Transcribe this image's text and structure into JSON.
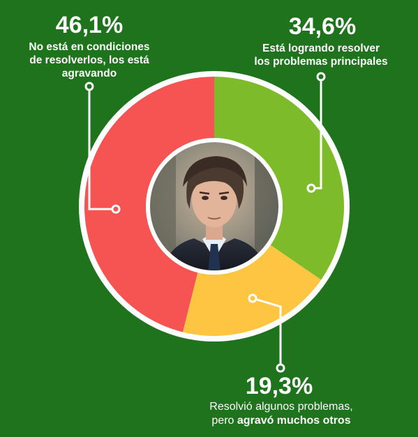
{
  "chart_data": {
    "type": "donut",
    "series": [
      {
        "value": 34.6,
        "value_label": "34,6%",
        "label": "Está lograndro resolver los problemas principales",
        "label_lines": [
          "Está logrando resolver",
          "los problemas principales"
        ],
        "color": "#7dbb2b"
      },
      {
        "value": 19.3,
        "value_label": "19,3%",
        "label": "Resolvió algunos problemas, pero agravó muchos otros",
        "label_lines": [
          "Resolvió algunos problemas,",
          "pero",
          "agravó muchos otros"
        ],
        "color": "#fdc542"
      },
      {
        "value": 46.1,
        "value_label": "46,1%",
        "label": "No está en condiciones de resolverlos, los está agravando",
        "label_lines": [
          "No está en condiciones",
          "de resolverlos, los está",
          "agravando"
        ],
        "color": "#f65353"
      }
    ],
    "center_image": "portrait-photo"
  },
  "colors": {
    "background": "#1e731c",
    "ring_border": "#ffffff",
    "leader": "#ffffff"
  }
}
